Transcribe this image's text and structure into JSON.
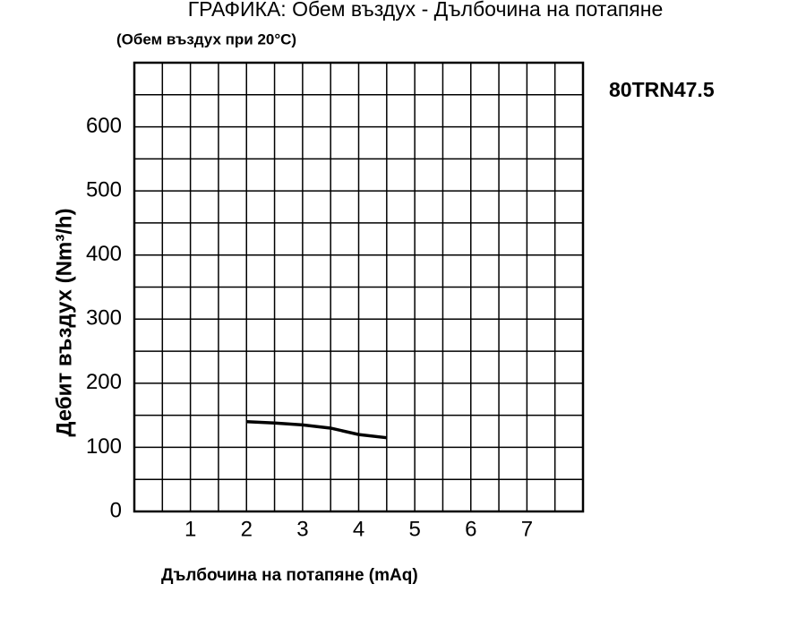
{
  "chart_data": {
    "type": "line",
    "title": "ГРАФИКА: Обем въздух - Дълбочина на потапяне",
    "subtitle": "(Обем въздух при 20°C)",
    "annotation": "80TRN47.5",
    "xlabel": "Дълбочина на потапяне (mAq)",
    "ylabel": "Дебит въздух (Nm³/h)",
    "x": [
      2,
      2.5,
      3,
      3.5,
      4,
      4.5
    ],
    "series": [
      {
        "name": "80TRN47.5",
        "color": "#000000",
        "values": [
          140,
          138,
          135,
          130,
          120,
          115
        ]
      }
    ],
    "xlim": [
      0,
      8
    ],
    "xticks": [
      1,
      2,
      3,
      4,
      5,
      6,
      7
    ],
    "ylim": [
      0,
      700
    ],
    "yticks": [
      0,
      100,
      200,
      300,
      400,
      500,
      600
    ],
    "grid": true,
    "xgrid": [
      0.5,
      1,
      1.5,
      2,
      2.5,
      3,
      3.5,
      4,
      4.5,
      5,
      5.5,
      6,
      6.5,
      7,
      7.5
    ],
    "ygrid": [
      50,
      100,
      150,
      200,
      250,
      300,
      350,
      400,
      450,
      500,
      550,
      600,
      650
    ]
  }
}
